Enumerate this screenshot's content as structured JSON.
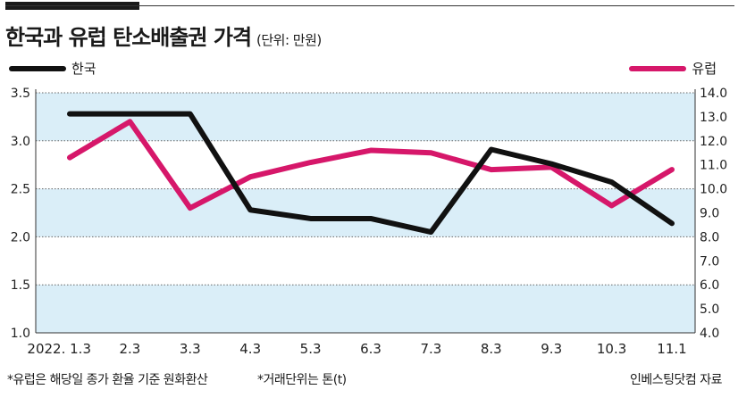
{
  "header": {
    "title": "한국과 유럽 탄소배출권 가격",
    "unit": "(단위: 만원)"
  },
  "footer": {
    "note1": "*유럽은 해당일 종가 환율 기준 원화환산",
    "note2": "*거래단위는 톤(t)",
    "source": "인베스팅닷컴 자료"
  },
  "colors": {
    "korea": "#111111",
    "europe": "#d6176a",
    "band": "#daeef8"
  },
  "chart_data": {
    "type": "line",
    "title": "한국과 유럽 탄소배출권 가격",
    "categories": [
      "2022. 1.3",
      "2.3",
      "3.3",
      "4.3",
      "5.3",
      "6.3",
      "7.3",
      "8.3",
      "9.3",
      "10.3",
      "11.1"
    ],
    "series": [
      {
        "name": "한국",
        "axis": "left",
        "values": [
          3.28,
          3.28,
          3.28,
          2.28,
          2.19,
          2.19,
          2.05,
          2.91,
          2.76,
          2.57,
          2.14
        ]
      },
      {
        "name": "유럽",
        "axis": "right",
        "values": [
          11.3,
          12.8,
          9.2,
          10.5,
          11.1,
          11.6,
          11.5,
          10.8,
          10.9,
          9.3,
          10.8
        ]
      }
    ],
    "y_left": {
      "min": 1.0,
      "max": 3.5,
      "ticks": [
        "1.0",
        "1.5",
        "2.0",
        "2.5",
        "3.0",
        "3.5"
      ]
    },
    "y_right": {
      "min": 4.0,
      "max": 14.0,
      "ticks": [
        "4.0",
        "5.0",
        "6.0",
        "7.0",
        "8.0",
        "9.0",
        "10.0",
        "11.0",
        "12.0",
        "13.0",
        "14.0"
      ]
    },
    "grid": true,
    "legend": [
      "top-left",
      "top-right"
    ]
  }
}
